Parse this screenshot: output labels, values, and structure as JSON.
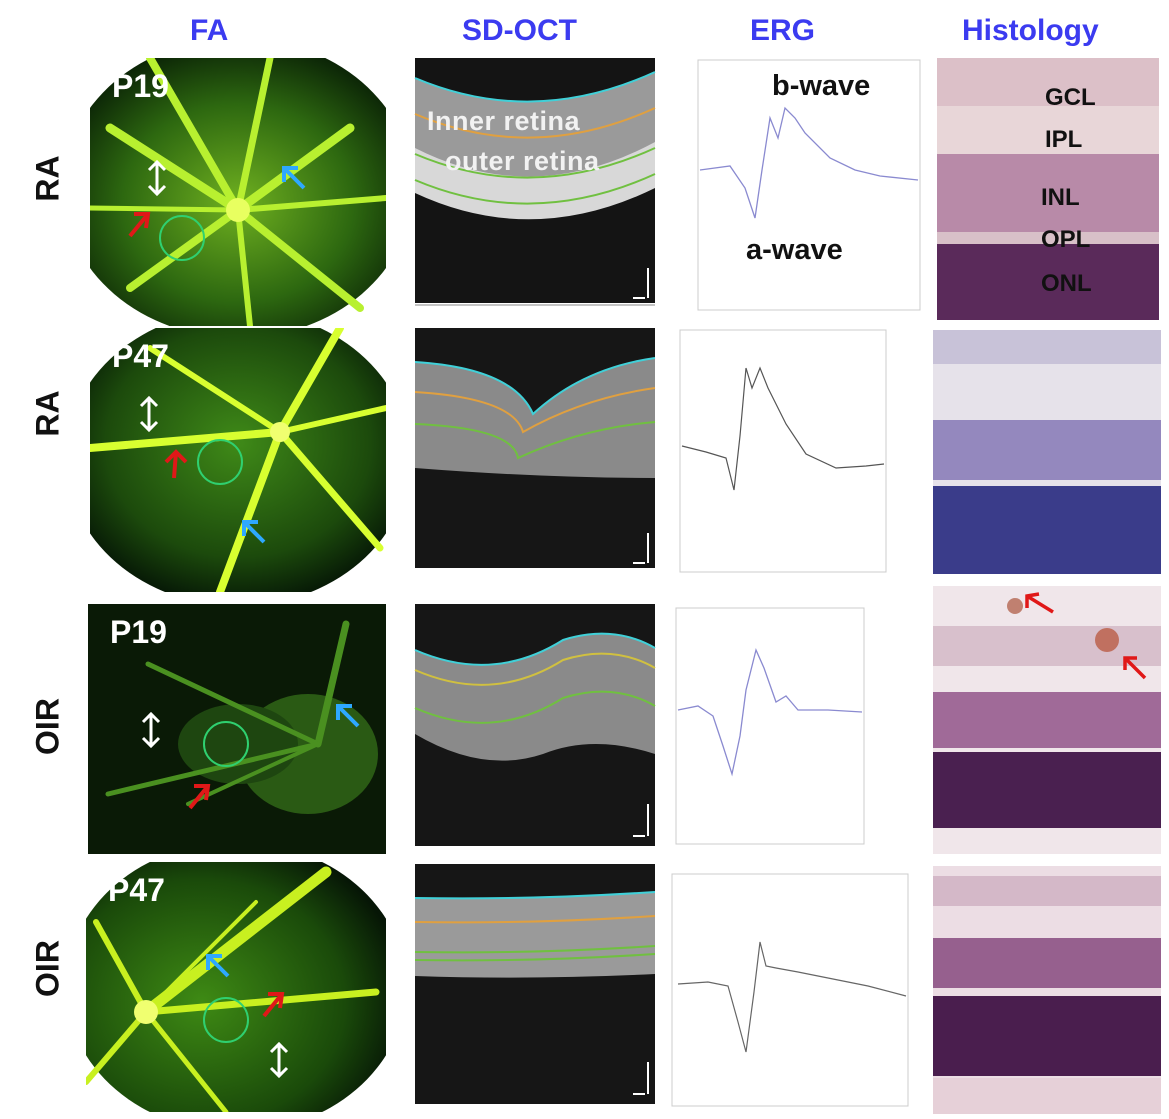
{
  "headers": {
    "fa": "FA",
    "oct": "SD-OCT",
    "erg": "ERG",
    "histology": "Histology"
  },
  "rows": [
    {
      "group": "RA",
      "age": "P19"
    },
    {
      "group": "RA",
      "age": "P47"
    },
    {
      "group": "OIR",
      "age": "P19"
    },
    {
      "group": "OIR",
      "age": "P47"
    }
  ],
  "oct_labels": {
    "inner": "Inner retina",
    "outer": "outer retina"
  },
  "erg_labels": {
    "b_wave": "b-wave",
    "a_wave": "a-wave"
  },
  "histology_layers": [
    "GCL",
    "IPL",
    "INL",
    "OPL",
    "ONL"
  ],
  "colors": {
    "header_blue": "#3b3bf0",
    "vessel_green": "#a8f020",
    "arrow_red": "#e01818",
    "arrow_blue": "#2ea8ff",
    "roi_circle": "#2fd070",
    "oct_surface": "#40d0d8",
    "oct_orange": "#e0a040",
    "oct_green": "#70c040",
    "erg_trace": "#8a8ad0"
  }
}
